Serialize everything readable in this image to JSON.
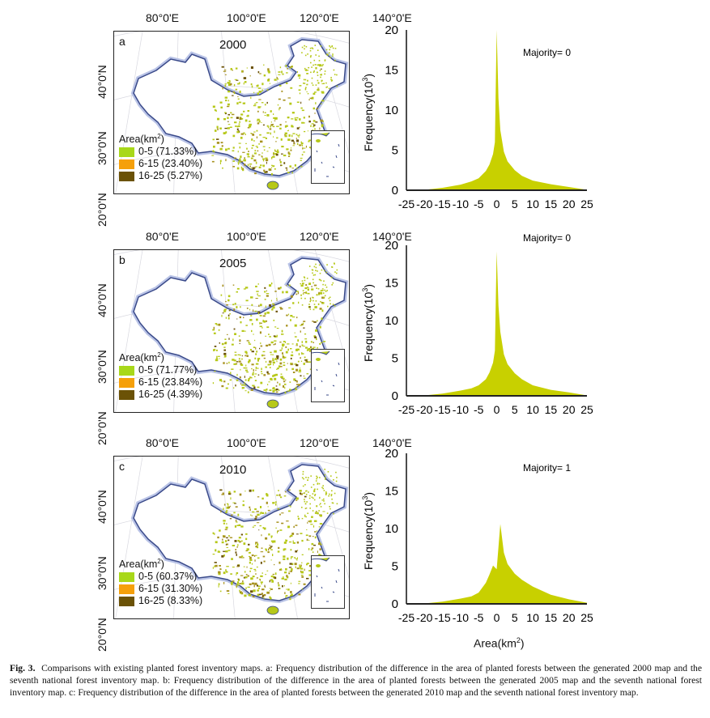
{
  "figure": {
    "caption_label": "Fig. 3.",
    "caption_text": "Comparisons with existing planted forest inventory maps. a: Frequency distribution of the difference in the area of planted forests between the generated 2000 map and the seventh national forest inventory map. b: Frequency distribution of the difference in the area of planted forests between the generated 2005 map and the seventh national forest inventory map. c: Frequency distribution of the difference in the area of planted forests between the generated 2010 map and the seventh national forest inventory map.",
    "shared_xlabel": "Area(km",
    "shared_xlabel_sup": "2",
    "shared_xlabel_end": ")"
  },
  "maps": {
    "lon_ticks": [
      "80°0'E",
      "100°0'E",
      "120°0'E",
      "140°0'E"
    ],
    "lat_ticks": [
      "40°0'N",
      "30°0'N",
      "20°0'N"
    ],
    "legend_title": "Area(km",
    "legend_title_sup": "2",
    "legend_title_end": ")",
    "legend_colors": [
      "#a8d81a",
      "#f5a00a",
      "#6b5206"
    ],
    "border_color": "#3a4a8a",
    "panels": [
      {
        "letter": "a",
        "year": "2000",
        "legend": [
          "0-5 (71.33%)",
          "6-15 (23.40%)",
          "16-25 (5.27%)"
        ]
      },
      {
        "letter": "b",
        "year": "2005",
        "legend": [
          "0-5 (71.77%)",
          "6-15 (23.84%)",
          "16-25 (4.39%)"
        ]
      },
      {
        "letter": "c",
        "year": "2010",
        "legend": [
          "0-5 (60.37%)",
          "6-15 (31.30%)",
          "16-25 (8.33%)"
        ]
      }
    ]
  },
  "chart_data": [
    {
      "type": "area",
      "panel": "a",
      "title": "",
      "xlabel": "",
      "ylabel": "Frequency(10^3)",
      "ylabel_base": "Frequency(10",
      "ylabel_sup": "3",
      "ylabel_end": ")",
      "xlim": [
        -25,
        25
      ],
      "ylim": [
        0,
        20
      ],
      "xticks": [
        "-25",
        "-20",
        "-15",
        "-10",
        "-5",
        "0",
        "5",
        "10",
        "15",
        "20",
        "25"
      ],
      "yticks": [
        "0",
        "5",
        "10",
        "15",
        "20"
      ],
      "annotation": "Majority= 0",
      "fill_color": "#c8d000",
      "grid": false,
      "x": [
        -20,
        -15,
        -10,
        -7,
        -5,
        -3,
        -2,
        -1,
        -0.5,
        0,
        0.5,
        1,
        2,
        3,
        5,
        7,
        10,
        15,
        20,
        25
      ],
      "y": [
        0.05,
        0.3,
        0.7,
        1.1,
        1.5,
        2.4,
        3.2,
        4.5,
        6.0,
        20.0,
        11.5,
        7.5,
        4.8,
        3.6,
        2.5,
        1.8,
        1.2,
        0.75,
        0.4,
        0.05
      ]
    },
    {
      "type": "area",
      "panel": "b",
      "title": "",
      "xlabel": "",
      "ylabel": "Frequency(10^3)",
      "ylabel_base": "Frequency(10",
      "ylabel_sup": "3",
      "ylabel_end": ")",
      "xlim": [
        -25,
        25
      ],
      "ylim": [
        0,
        20
      ],
      "xticks": [
        "-25",
        "-20",
        "-15",
        "-10",
        "-5",
        "0",
        "5",
        "10",
        "15",
        "20",
        "25"
      ],
      "yticks": [
        "0",
        "5",
        "10",
        "15",
        "20"
      ],
      "annotation": "Majority= 0",
      "fill_color": "#c8d000",
      "grid": false,
      "x": [
        -20,
        -15,
        -10,
        -7,
        -5,
        -3,
        -2,
        -1,
        -0.5,
        0,
        0.5,
        1,
        2,
        3,
        5,
        7,
        10,
        15,
        20,
        25
      ],
      "y": [
        0.05,
        0.3,
        0.7,
        1.0,
        1.4,
        2.2,
        3.1,
        4.4,
        6.0,
        19.2,
        12.0,
        8.5,
        5.5,
        4.2,
        3.0,
        2.2,
        1.4,
        0.8,
        0.45,
        0.05
      ]
    },
    {
      "type": "area",
      "panel": "c",
      "title": "",
      "xlabel": "Area(km^2)",
      "ylabel": "Frequency(10^3)",
      "ylabel_base": "Frequency(10",
      "ylabel_sup": "3",
      "ylabel_end": ")",
      "xlim": [
        -25,
        25
      ],
      "ylim": [
        0,
        20
      ],
      "xticks": [
        "-25",
        "-20",
        "-15",
        "-10",
        "-5",
        "0",
        "5",
        "10",
        "15",
        "20",
        "25"
      ],
      "yticks": [
        "0",
        "5",
        "10",
        "15",
        "20"
      ],
      "annotation": "Majority= 1",
      "fill_color": "#c8d000",
      "grid": false,
      "x": [
        -20,
        -15,
        -10,
        -7,
        -5,
        -3,
        -2,
        -1,
        0,
        1,
        2,
        3,
        5,
        7,
        10,
        15,
        20,
        25
      ],
      "y": [
        0.05,
        0.3,
        0.7,
        1.0,
        1.5,
        2.8,
        3.9,
        5.1,
        4.6,
        10.6,
        6.8,
        5.3,
        4.0,
        3.2,
        2.3,
        1.2,
        0.6,
        0.15
      ]
    }
  ]
}
